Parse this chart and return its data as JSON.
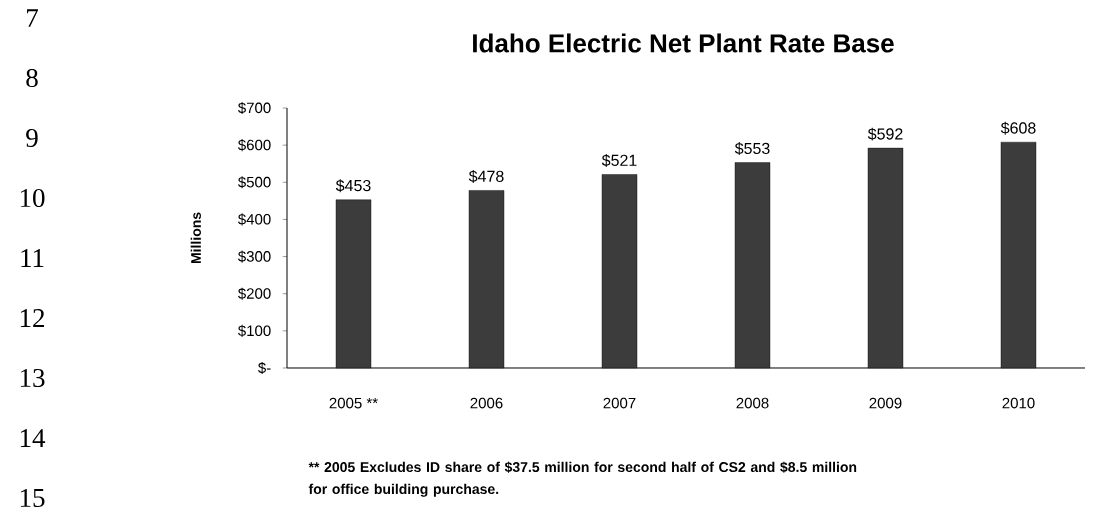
{
  "chart_data": {
    "type": "bar",
    "title": "Idaho Electric Net Plant Rate Base",
    "ylabel": "Millions",
    "categories": [
      "2005 **",
      "2006",
      "2007",
      "2008",
      "2009",
      "2010"
    ],
    "values": [
      453,
      478,
      521,
      553,
      592,
      608
    ],
    "value_labels": [
      "$453",
      "$478",
      "$521",
      "$553",
      "$592",
      "$608"
    ],
    "color": "#3c3c3c",
    "ylim": [
      0,
      700
    ],
    "yticks": [
      {
        "value": 0,
        "label": "$-"
      },
      {
        "value": 100,
        "label": "$100"
      },
      {
        "value": 200,
        "label": "$200"
      },
      {
        "value": 300,
        "label": "$300"
      },
      {
        "value": 400,
        "label": "$400"
      },
      {
        "value": 500,
        "label": "$500"
      },
      {
        "value": 600,
        "label": "$600"
      },
      {
        "value": 700,
        "label": "$700"
      }
    ],
    "grid": false,
    "annotations": [
      "** 2005 Excludes ID share of $37.5 million for  second half of CS2 and $8.5 million for office  building purchase.",
      "7",
      "8",
      "9",
      "10",
      "11",
      "12",
      "13",
      "14",
      "15"
    ]
  }
}
